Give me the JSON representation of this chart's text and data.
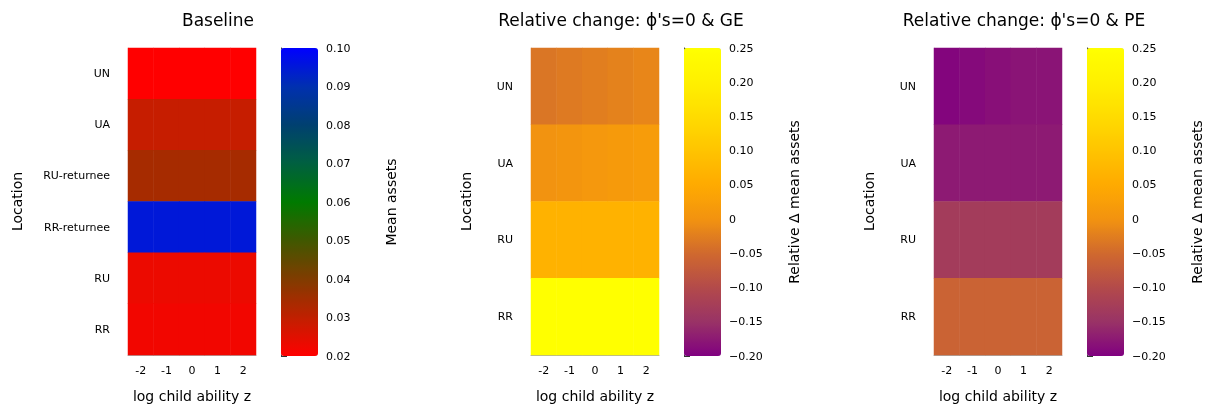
{
  "chart_data": [
    {
      "type": "heatmap",
      "title": "Baseline",
      "xlabel": "log child ability z",
      "ylabel": "Location",
      "clabel": "Mean assets",
      "categories": [
        "-2",
        "-1",
        "0",
        "1",
        "2"
      ],
      "y_categories": [
        "UN",
        "UA",
        "RU-returnee",
        "RR-returnee",
        "RU",
        "RR"
      ],
      "cells": [
        [
          0.02,
          0.02,
          0.02,
          0.02,
          0.02
        ],
        [
          0.029,
          0.029,
          0.029,
          0.029,
          0.029
        ],
        [
          0.034,
          0.034,
          0.034,
          0.034,
          0.034
        ],
        [
          0.095,
          0.095,
          0.095,
          0.095,
          0.095
        ],
        [
          0.023,
          0.023,
          0.023,
          0.023,
          0.023
        ],
        [
          0.022,
          0.022,
          0.022,
          0.022,
          0.022
        ]
      ],
      "clim": [
        0.02,
        0.1
      ],
      "cticks": [
        0.02,
        0.03,
        0.04,
        0.05,
        0.06,
        0.07,
        0.08,
        0.09,
        {
          "value": 0.1,
          "label": "0.10"
        }
      ],
      "colors": [
        "#ff0000",
        "#c02000",
        "#803c00",
        "#405800",
        "#007a00",
        "#006040",
        "#004070",
        "#0030b0",
        "#0000ff"
      ]
    },
    {
      "type": "heatmap",
      "title": "Relative change: ϕ's=0 & GE",
      "xlabel": "log child ability z",
      "ylabel": "Location",
      "clabel": "Relative Δ mean assets",
      "categories": [
        "-2",
        "-1",
        "0",
        "1",
        "2"
      ],
      "y_categories": [
        "UN",
        "UA",
        "RU",
        "RR"
      ],
      "cells": [
        [
          -0.035,
          -0.03,
          -0.025,
          -0.02,
          -0.015
        ],
        [
          0.0,
          0.005,
          0.01,
          0.015,
          0.02
        ],
        [
          0.065,
          0.065,
          0.065,
          0.065,
          0.065
        ],
        [
          0.25,
          0.25,
          0.25,
          0.25,
          0.25
        ]
      ],
      "clim": [
        -0.2,
        0.25
      ],
      "cticks": [
        {
          "value": -0.2,
          "label": "−0.20"
        },
        {
          "value": -0.15,
          "label": "−0.15"
        },
        {
          "value": -0.1,
          "label": "−0.10"
        },
        {
          "value": -0.05,
          "label": "−0.05"
        },
        0,
        0.05,
        {
          "value": 0.1,
          "label": "0.10"
        },
        0.15,
        {
          "value": 0.2,
          "label": "0.20"
        },
        0.25
      ],
      "colors": [
        "#800080",
        "#993366",
        "#b34a4a",
        "#d0692e",
        "#f29310",
        "#ffaa00",
        "#ffc400",
        "#ffdc00",
        "#fff000",
        "#ffff00"
      ]
    },
    {
      "type": "heatmap",
      "title": "Relative change: ϕ's=0 & PE",
      "xlabel": "log child ability z",
      "ylabel": "Location",
      "clabel": "Relative Δ mean assets",
      "categories": [
        "-2",
        "-1",
        "0",
        "1",
        "2"
      ],
      "y_categories": [
        "UN",
        "UA",
        "RU",
        "RR"
      ],
      "cells": [
        [
          -0.195,
          -0.19,
          -0.185,
          -0.18,
          -0.18
        ],
        [
          -0.175,
          -0.175,
          -0.175,
          -0.175,
          -0.175
        ],
        [
          -0.13,
          -0.13,
          -0.13,
          -0.13,
          -0.13
        ],
        [
          -0.06,
          -0.06,
          -0.06,
          -0.06,
          -0.06
        ]
      ],
      "clim": [
        -0.2,
        0.25
      ],
      "cticks": [
        {
          "value": -0.2,
          "label": "−0.20"
        },
        {
          "value": -0.15,
          "label": "−0.15"
        },
        {
          "value": -0.1,
          "label": "−0.10"
        },
        {
          "value": -0.05,
          "label": "−0.05"
        },
        0,
        0.05,
        {
          "value": 0.1,
          "label": "0.10"
        },
        0.15,
        {
          "value": 0.2,
          "label": "0.20"
        },
        0.25
      ],
      "colors": [
        "#800080",
        "#993366",
        "#b34a4a",
        "#d0692e",
        "#f29310",
        "#ffaa00",
        "#ffc400",
        "#ffdc00",
        "#fff000",
        "#ffff00"
      ]
    }
  ]
}
